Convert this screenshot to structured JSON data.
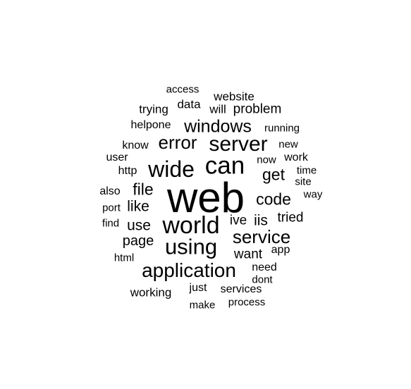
{
  "word_cloud": {
    "text_color": "#000000",
    "background_color": "#ffffff",
    "words": [
      "web",
      "world",
      "wide",
      "can",
      "using",
      "application",
      "server",
      "service",
      "windows",
      "error",
      "code",
      "get",
      "file",
      "iis",
      "like",
      "use",
      "page",
      "ive",
      "tried",
      "want",
      "problem",
      "website",
      "data",
      "will",
      "trying",
      "access",
      "helpone",
      "running",
      "know",
      "new",
      "user",
      "now",
      "work",
      "http",
      "time",
      "site",
      "also",
      "way",
      "port",
      "find",
      "app",
      "html",
      "need",
      "dont",
      "working",
      "just",
      "services",
      "make",
      "process"
    ]
  }
}
